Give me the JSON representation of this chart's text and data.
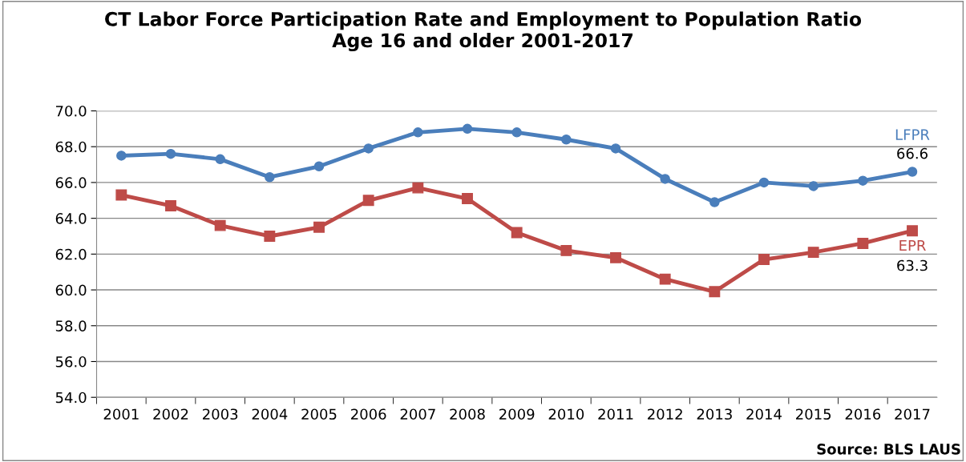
{
  "chart_data": {
    "type": "line",
    "title": "CT Labor Force Participation Rate and Employment to Population Ratio\nAge 16 and older 2001-2017",
    "categories": [
      "2001",
      "2002",
      "2003",
      "2004",
      "2005",
      "2006",
      "2007",
      "2008",
      "2009",
      "2010",
      "2011",
      "2012",
      "2013",
      "2014",
      "2015",
      "2016",
      "2017"
    ],
    "series": [
      {
        "name": "LFPR",
        "color": "#4a7ebb",
        "marker": "circle",
        "values": [
          67.5,
          67.6,
          67.3,
          66.3,
          66.9,
          67.9,
          68.8,
          69.0,
          68.8,
          68.4,
          67.9,
          66.2,
          64.9,
          66.0,
          65.8,
          66.1,
          66.6
        ]
      },
      {
        "name": "EPR",
        "color": "#be4b48",
        "marker": "square",
        "values": [
          65.3,
          64.7,
          63.6,
          63.0,
          63.5,
          65.0,
          65.7,
          65.1,
          63.2,
          62.2,
          61.8,
          60.6,
          59.9,
          61.7,
          62.1,
          62.6,
          63.3
        ]
      }
    ],
    "ylim": [
      54,
      70
    ],
    "yticks": [
      {
        "value": 54,
        "label": "54.0"
      },
      {
        "value": 56,
        "label": "56.0"
      },
      {
        "value": 58,
        "label": "58.0"
      },
      {
        "value": 60,
        "label": "60.0"
      },
      {
        "value": 62,
        "label": "62.0"
      },
      {
        "value": 64,
        "label": "64.0"
      },
      {
        "value": 66,
        "label": "66.0"
      },
      {
        "value": 68,
        "label": "68.0"
      },
      {
        "value": 70,
        "label": "70.0"
      }
    ],
    "grid": "y",
    "legend": false,
    "annotations": [
      {
        "text": "66.6",
        "x": "2017",
        "y": 66.6
      },
      {
        "text": "63.3",
        "x": "2017",
        "y": 63.3
      },
      "Source: BLS LAUS"
    ]
  }
}
